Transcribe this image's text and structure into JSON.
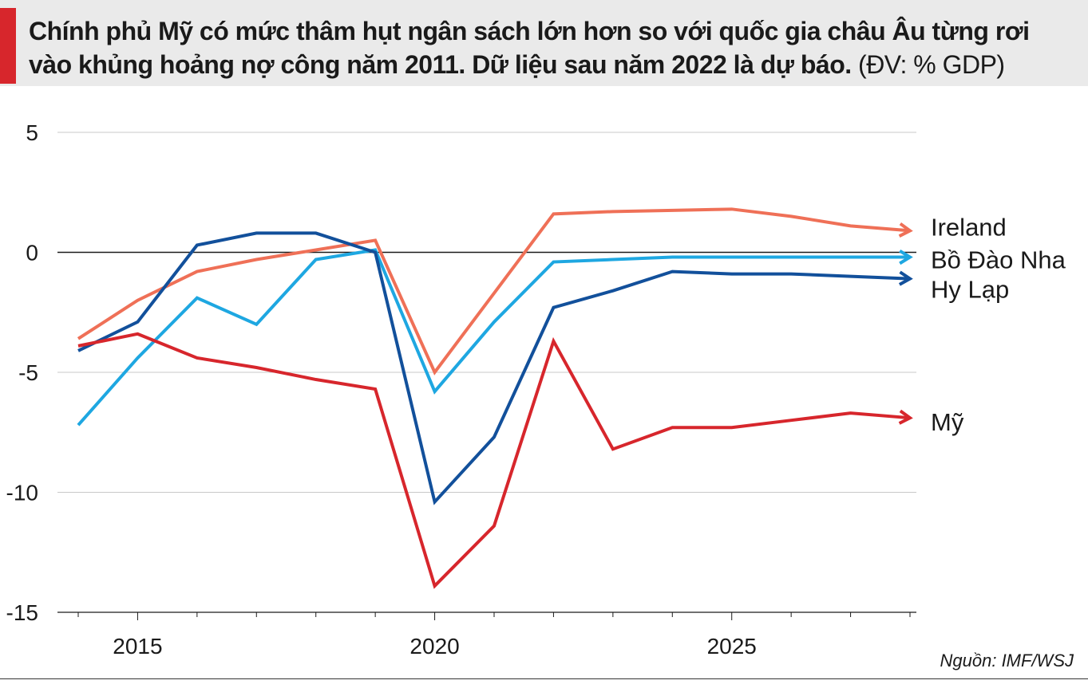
{
  "header": {
    "title": "Chính phủ Mỹ có mức thâm hụt ngân sách lớn hơn so với quốc gia châu Âu từng rơi vào khủng hoảng nợ công năm 2011. Dữ liệu sau năm 2022 là dự báo.",
    "unit": "(ĐV: % GDP)"
  },
  "source": "Nguồn: IMF/WSJ",
  "colors": {
    "accent": "#d7262c",
    "title_bg": "#eaeaea"
  },
  "chart_data": {
    "type": "line",
    "title": "Chính phủ Mỹ có mức thâm hụt ngân sách lớn hơn so với quốc gia châu Âu từng rơi vào khủng hoảng nợ công năm 2011. Dữ liệu sau năm 2022 là dự báo.",
    "ylabel": "(ĐV: % GDP)",
    "xlabel": "",
    "x": [
      2014,
      2015,
      2016,
      2017,
      2018,
      2019,
      2020,
      2021,
      2022,
      2023,
      2024,
      2025,
      2026,
      2027,
      2028
    ],
    "xlim": [
      2013.5,
      2028.3
    ],
    "ylim": [
      -15,
      5
    ],
    "xticks": [
      2015,
      2020,
      2025
    ],
    "yticks": [
      5,
      0,
      -5,
      -10,
      -15
    ],
    "grid": true,
    "legend": "end-of-line labels",
    "series": [
      {
        "name": "Ireland",
        "color": "#ef7057",
        "values": [
          -3.6,
          -2.0,
          -0.8,
          -0.3,
          0.1,
          0.5,
          -5.0,
          -1.7,
          1.6,
          1.7,
          1.75,
          1.8,
          1.5,
          1.1,
          0.9
        ]
      },
      {
        "name": "Bồ Đào Nha",
        "color": "#1ea7e1",
        "values": [
          -7.2,
          -4.4,
          -1.9,
          -3.0,
          -0.3,
          0.1,
          -5.8,
          -2.9,
          -0.4,
          -0.3,
          -0.2,
          -0.2,
          -0.2,
          -0.2,
          -0.2
        ]
      },
      {
        "name": "Hy Lạp",
        "color": "#12509b",
        "values": [
          -4.1,
          -2.9,
          0.3,
          0.8,
          0.8,
          0.0,
          -10.4,
          -7.7,
          -2.3,
          -1.6,
          -0.8,
          -0.9,
          -0.9,
          -1.0,
          -1.1
        ]
      },
      {
        "name": "Mỹ",
        "color": "#d7262c",
        "values": [
          -3.9,
          -3.4,
          -4.4,
          -4.8,
          -5.3,
          -5.7,
          -13.9,
          -11.4,
          -3.7,
          -8.2,
          -7.3,
          -7.3,
          -7.0,
          -6.7,
          -6.9
        ]
      }
    ]
  }
}
